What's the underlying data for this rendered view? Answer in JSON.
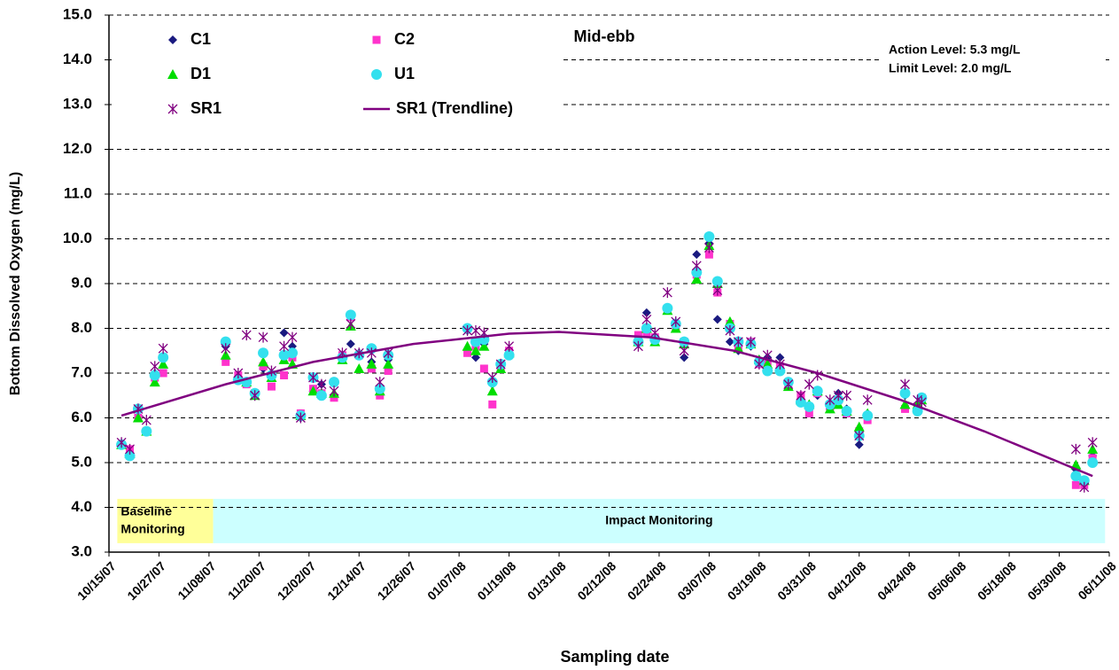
{
  "chart_data": {
    "type": "scatter",
    "title": "Mid-ebb",
    "annotations": [
      "Action Level: 5.3 mg/L",
      "Limit Level: 2.0 mg/L"
    ],
    "x_label": "Sampling date",
    "y_label": "Bottom Dissolved Oxygen (mg/L)",
    "xlim": [
      "10/15/07",
      "06/11/08"
    ],
    "xticks": [
      "10/15/07",
      "10/27/07",
      "11/08/07",
      "11/20/07",
      "12/02/07",
      "12/14/07",
      "12/26/07",
      "01/07/08",
      "01/19/08",
      "01/31/08",
      "02/12/08",
      "02/24/08",
      "03/07/08",
      "03/19/08",
      "03/31/08",
      "04/12/08",
      "04/24/08",
      "05/06/08",
      "05/18/08",
      "05/30/08",
      "06/11/08"
    ],
    "ylim": [
      3,
      15
    ],
    "yticks": [
      {
        "value": 3,
        "label": "3.0"
      },
      {
        "value": 4,
        "label": "4.0"
      },
      {
        "value": 5,
        "label": "5.0"
      },
      {
        "value": 6,
        "label": "6.0"
      },
      {
        "value": 7,
        "label": "7.0"
      },
      {
        "value": 8,
        "label": "8.0"
      },
      {
        "value": 9,
        "label": "9.0"
      },
      {
        "value": 10,
        "label": "10.0"
      },
      {
        "value": 11,
        "label": "11.0"
      },
      {
        "value": 12,
        "label": "12.0"
      },
      {
        "value": 13,
        "label": "13.0"
      },
      {
        "value": 14,
        "label": "14.0"
      },
      {
        "value": 15,
        "label": "15.0"
      }
    ],
    "grid": true,
    "legend": "top-left",
    "spans": [
      {
        "label": [
          "Baseline",
          "Monitoring"
        ],
        "x": [
          "10/17/07",
          "11/09/07"
        ],
        "y": [
          3.2,
          4.19
        ],
        "color": "#ffff99"
      },
      {
        "label": [
          "Impact Monitoring"
        ],
        "x": [
          "11/09/07",
          "06/10/08"
        ],
        "y": [
          3.2,
          4.19
        ],
        "color": "#ccffff"
      }
    ],
    "x": [
      "10/18/07",
      "10/20/07",
      "10/22/07",
      "10/24/07",
      "10/26/07",
      "10/28/07",
      "11/12/07",
      "11/15/07",
      "11/17/07",
      "11/19/07",
      "11/21/07",
      "11/23/07",
      "11/26/07",
      "11/28/07",
      "11/30/07",
      "12/03/07",
      "12/05/07",
      "12/08/07",
      "12/10/07",
      "12/12/07",
      "12/14/07",
      "12/17/07",
      "12/19/07",
      "12/21/07",
      "01/09/08",
      "01/11/08",
      "01/13/08",
      "01/15/08",
      "01/17/08",
      "01/19/08",
      "02/19/08",
      "02/21/08",
      "02/23/08",
      "02/26/08",
      "02/28/08",
      "03/01/08",
      "03/04/08",
      "03/07/08",
      "03/09/08",
      "03/12/08",
      "03/14/08",
      "03/17/08",
      "03/19/08",
      "03/21/08",
      "03/24/08",
      "03/26/08",
      "03/29/08",
      "03/31/08",
      "04/02/08",
      "04/05/08",
      "04/07/08",
      "04/09/08",
      "04/12/08",
      "04/14/08",
      "04/23/08",
      "04/26/08",
      "04/27/08",
      "06/03/08",
      "06/05/08",
      "06/07/08"
    ],
    "series": [
      {
        "name": "C1",
        "color": "#1a1a80",
        "marker": "diamond",
        "values": [
          5.4,
          5.2,
          6.2,
          5.7,
          7.0,
          7.3,
          7.6,
          6.9,
          6.8,
          6.5,
          7.1,
          7.0,
          7.9,
          7.6,
          6.0,
          6.6,
          6.75,
          6.5,
          7.35,
          7.65,
          7.45,
          7.25,
          6.6,
          7.3,
          7.95,
          7.35,
          7.65,
          6.75,
          7.15,
          7.5,
          7.7,
          8.35,
          7.8,
          8.45,
          8.1,
          7.35,
          9.65,
          9.9,
          8.2,
          7.7,
          7.5,
          7.6,
          7.3,
          7.35,
          7.35,
          6.8,
          6.35,
          6.2,
          6.5,
          6.2,
          6.55,
          6.2,
          5.4,
          6.1,
          6.5,
          6.3,
          6.4,
          4.85,
          4.55,
          5.15
        ]
      },
      {
        "name": "C2",
        "color": "#ff33cc",
        "marker": "square",
        "values": [
          5.4,
          5.3,
          6.0,
          5.7,
          6.9,
          7.0,
          7.25,
          6.95,
          6.75,
          6.55,
          7.15,
          6.7,
          6.95,
          7.35,
          6.1,
          6.65,
          6.55,
          6.45,
          7.4,
          8.25,
          7.4,
          7.1,
          6.5,
          7.05,
          7.45,
          7.6,
          7.1,
          6.3,
          7.1,
          7.5,
          7.85,
          7.9,
          7.8,
          8.4,
          8.0,
          7.7,
          9.2,
          9.65,
          8.8,
          8.1,
          7.6,
          7.7,
          7.2,
          7.2,
          7.15,
          6.7,
          6.5,
          6.1,
          6.55,
          6.2,
          6.4,
          6.1,
          5.7,
          5.95,
          6.2,
          6.25,
          6.45,
          4.5,
          4.5,
          5.1
        ]
      },
      {
        "name": "D1",
        "color": "#00dd00",
        "marker": "triangle",
        "values": [
          5.4,
          5.2,
          6.0,
          5.7,
          6.8,
          7.2,
          7.4,
          6.9,
          6.8,
          6.5,
          7.25,
          6.9,
          7.3,
          7.2,
          6.05,
          6.6,
          6.55,
          6.55,
          7.3,
          8.05,
          7.1,
          7.2,
          6.6,
          7.2,
          7.6,
          7.5,
          7.6,
          6.6,
          7.1,
          7.45,
          7.7,
          8.0,
          7.7,
          8.4,
          8.0,
          7.65,
          9.1,
          9.85,
          9.0,
          8.15,
          7.55,
          7.65,
          7.3,
          7.2,
          7.1,
          6.7,
          6.4,
          6.3,
          6.6,
          6.2,
          6.3,
          6.15,
          5.8,
          6.1,
          6.3,
          6.3,
          6.4,
          4.95,
          4.6,
          5.3
        ]
      },
      {
        "name": "U1",
        "color": "#33e0ee",
        "marker": "circle",
        "values": [
          5.4,
          5.15,
          6.2,
          5.7,
          6.95,
          7.35,
          7.7,
          6.85,
          6.8,
          6.55,
          7.45,
          6.95,
          7.4,
          7.45,
          6.05,
          6.9,
          6.5,
          6.8,
          7.35,
          8.3,
          7.4,
          7.55,
          6.65,
          7.4,
          8.0,
          7.7,
          7.75,
          6.8,
          7.2,
          7.4,
          7.7,
          8.0,
          7.75,
          8.45,
          8.1,
          7.7,
          9.25,
          10.05,
          9.05,
          8.0,
          7.7,
          7.65,
          7.25,
          7.05,
          7.05,
          6.8,
          6.35,
          6.25,
          6.6,
          6.3,
          6.4,
          6.15,
          5.6,
          6.05,
          6.55,
          6.15,
          6.45,
          4.7,
          4.6,
          5.0
        ]
      },
      {
        "name": "SR1",
        "color": "#800080",
        "marker": "asterisk",
        "values": [
          5.45,
          5.3,
          6.2,
          5.95,
          7.15,
          7.55,
          7.55,
          7.0,
          7.85,
          6.5,
          7.8,
          7.05,
          7.6,
          7.8,
          6.0,
          6.9,
          6.75,
          6.6,
          7.45,
          8.1,
          7.45,
          7.45,
          6.8,
          7.45,
          7.95,
          7.95,
          7.9,
          6.9,
          7.2,
          7.6,
          7.6,
          8.2,
          7.9,
          8.8,
          8.15,
          7.5,
          9.4,
          9.8,
          8.85,
          7.95,
          7.7,
          7.7,
          7.2,
          7.4,
          7.2,
          6.75,
          6.5,
          6.75,
          6.95,
          6.4,
          6.5,
          6.5,
          5.6,
          6.4,
          6.75,
          6.4,
          6.35,
          5.3,
          4.45,
          5.45
        ]
      },
      {
        "name": "SR1 (Trendline)",
        "color": "#800080",
        "marker": "line",
        "x": [
          "10/18/07",
          "11/12/07",
          "12/03/07",
          "12/27/07",
          "01/19/08",
          "01/31/08",
          "02/22/08",
          "03/13/08",
          "04/02/08",
          "04/22/08",
          "05/12/08",
          "06/07/08"
        ],
        "values": [
          6.05,
          6.75,
          7.25,
          7.65,
          7.88,
          7.92,
          7.8,
          7.5,
          7.0,
          6.4,
          5.7,
          4.7
        ]
      }
    ]
  }
}
